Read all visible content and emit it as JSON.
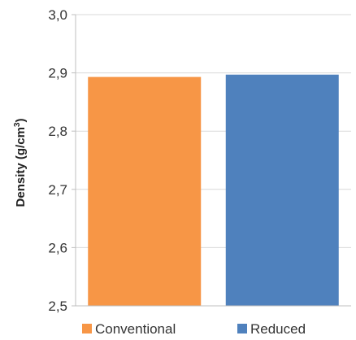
{
  "chart_data": {
    "type": "bar",
    "categories": [
      "Conventional",
      "Reduced"
    ],
    "values": [
      2.893,
      2.897
    ],
    "ylim": [
      2.5,
      3.0
    ],
    "yticks": [
      "2,5",
      "2,6",
      "2,7",
      "2,8",
      "2,9",
      "3,0"
    ],
    "ytick_values": [
      2.5,
      2.6,
      2.7,
      2.8,
      2.9,
      3.0
    ],
    "ylabel_text": "Density (g/cm",
    "ylabel_sup": "3",
    "ylabel_close": ")",
    "grid": true,
    "legend": {
      "placement": "bottom",
      "entries": [
        {
          "label": "Conventional",
          "color": "#f79646"
        },
        {
          "label": "Reduced",
          "color": "#4f81bd"
        }
      ]
    },
    "colors": [
      "#f79646",
      "#4f81bd"
    ],
    "grid_color": "#d9d9d9",
    "axis_color": "#bfbfbf"
  }
}
